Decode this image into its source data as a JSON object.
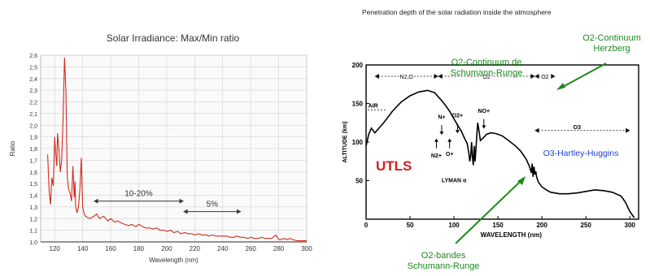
{
  "chart_data": [
    {
      "type": "line",
      "title": "Solar Irradiance: Max/Min ratio",
      "xlabel": "Wavelength (nm)",
      "ylabel": "Ratio",
      "xlim": [
        110,
        300
      ],
      "ylim": [
        1.0,
        2.6
      ],
      "x_ticks": [
        120,
        140,
        160,
        180,
        200,
        220,
        240,
        260,
        280,
        300
      ],
      "y_ticks": [
        1.0,
        1.1,
        1.2,
        1.3,
        1.4,
        1.5,
        1.6,
        1.7,
        1.8,
        1.9,
        2.0,
        2.1,
        2.2,
        2.3,
        2.4,
        2.5,
        2.6
      ],
      "y_tick_labels": [
        "1,0",
        "1,1",
        "1,2",
        "1,3",
        "1,4",
        "1,5",
        "1,6",
        "1,7",
        "1,8",
        "1,9",
        "2,0",
        "2,1",
        "2,2",
        "2,3",
        "2,4",
        "2,5",
        "2,6"
      ],
      "grid": true,
      "line_color": "#d42a1c",
      "series": [
        {
          "x": [
            115,
            116,
            117,
            118,
            119,
            120,
            121,
            121.5,
            122,
            123,
            124,
            125,
            126,
            127,
            127.5,
            128,
            129,
            130,
            131,
            132,
            133,
            134,
            134.5,
            135,
            136,
            137,
            138,
            139,
            140,
            141,
            142,
            145,
            148,
            150,
            152,
            155,
            158,
            160,
            163,
            165,
            168,
            170,
            173,
            175,
            178,
            180,
            183,
            185,
            188,
            190,
            193,
            195,
            198,
            200,
            203,
            205,
            208,
            210,
            213,
            215,
            218,
            220,
            223,
            225,
            228,
            230,
            233,
            235,
            238,
            240,
            243,
            245,
            248,
            250,
            253,
            255,
            258,
            260,
            263,
            265,
            268,
            270,
            273,
            275,
            278,
            280,
            282,
            284,
            286,
            288,
            290,
            293,
            296,
            300
          ],
          "y": [
            1.75,
            1.45,
            1.32,
            1.55,
            1.48,
            1.9,
            1.72,
            1.65,
            1.93,
            1.8,
            1.6,
            1.7,
            2.05,
            2.58,
            2.45,
            2.3,
            1.55,
            1.45,
            1.42,
            1.35,
            1.65,
            1.38,
            1.52,
            1.3,
            1.25,
            1.3,
            1.45,
            1.72,
            1.3,
            1.24,
            1.22,
            1.2,
            1.22,
            1.24,
            1.2,
            1.22,
            1.18,
            1.2,
            1.17,
            1.18,
            1.16,
            1.15,
            1.14,
            1.15,
            1.13,
            1.15,
            1.13,
            1.12,
            1.12,
            1.11,
            1.12,
            1.1,
            1.1,
            1.09,
            1.1,
            1.08,
            1.09,
            1.07,
            1.08,
            1.07,
            1.07,
            1.06,
            1.07,
            1.06,
            1.06,
            1.05,
            1.06,
            1.05,
            1.05,
            1.05,
            1.05,
            1.04,
            1.04,
            1.05,
            1.04,
            1.04,
            1.03,
            1.04,
            1.03,
            1.03,
            1.04,
            1.03,
            1.03,
            1.03,
            1.06,
            1.02,
            1.02,
            1.03,
            1.02,
            1.03,
            1.02,
            1.01,
            1.01,
            1.01
          ]
        }
      ],
      "annotations": [
        {
          "text": "10-20%",
          "x_from": 148,
          "x_to": 212,
          "y": 1.35
        },
        {
          "text": "5%",
          "x_from": 212,
          "x_to": 253,
          "y": 1.26
        }
      ]
    },
    {
      "type": "line",
      "title": "Penetration depth of the solar radiation inside the atmosphere",
      "xlabel": "WAVELENGTH (nm)",
      "ylabel": "ALTITUDE (km)",
      "xlim": [
        0,
        310
      ],
      "ylim": [
        0,
        200
      ],
      "x_ticks": [
        0,
        50,
        100,
        150,
        200,
        250,
        300
      ],
      "y_ticks": [
        50,
        100,
        150,
        200
      ],
      "grid": false,
      "line_color": "#000000",
      "series": [
        {
          "x": [
            0,
            3,
            6,
            10,
            20,
            30,
            40,
            50,
            60,
            70,
            78,
            85,
            90,
            95,
            100,
            105,
            108,
            112,
            115,
            117,
            118,
            119,
            120,
            121,
            122,
            123,
            124,
            125,
            126,
            127,
            128,
            130,
            133,
            137,
            142,
            148,
            155,
            162,
            170,
            176,
            182,
            186,
            188,
            189,
            190,
            191,
            192,
            193,
            194,
            196,
            198,
            200,
            205,
            210,
            220,
            230,
            240,
            250,
            260,
            270,
            280,
            290,
            295,
            300,
            305
          ],
          "y": [
            95,
            110,
            118,
            112,
            125,
            140,
            152,
            160,
            165,
            167,
            164,
            155,
            148,
            140,
            130,
            120,
            115,
            105,
            98,
            85,
            75,
            82,
            100,
            80,
            70,
            95,
            75,
            92,
            110,
            125,
            118,
            102,
            105,
            110,
            112,
            111,
            108,
            102,
            95,
            88,
            78,
            68,
            60,
            72,
            55,
            68,
            58,
            62,
            55,
            48,
            45,
            42,
            38,
            35,
            33,
            33,
            34,
            36,
            38,
            37,
            35,
            30,
            22,
            10,
            2
          ]
        }
      ],
      "top_ranges": [
        {
          "label": "N2,O",
          "x_from": 10,
          "x_to": 82
        },
        {
          "label": "O2",
          "x_from": 82,
          "x_to": 192
        },
        {
          "label": "O2",
          "x_from": 192,
          "x_to": 215
        }
      ],
      "inner_labels": [
        {
          "text": "AIR",
          "x": 8,
          "y": 145
        },
        {
          "text": "N+",
          "x": 86,
          "y": 130
        },
        {
          "text": "O2+",
          "x": 104,
          "y": 132
        },
        {
          "text": "NO+",
          "x": 134,
          "y": 138
        },
        {
          "text": "N2+",
          "x": 80,
          "y": 80
        },
        {
          "text": "O+",
          "x": 95,
          "y": 82
        },
        {
          "text": "LYMAN α",
          "x": 100,
          "y": 48
        },
        {
          "text": "O3",
          "x": 240,
          "y": 117
        }
      ],
      "overlay_labels": {
        "utls": "UTLS",
        "o2_sr": "O2-Continuum de\nSchumann-Runge",
        "o2_herzberg": "O2-Continuum\nHerzberg",
        "o3_hh": "O3-Hartley-Huggins",
        "o2_bandes": "O2-bandes\nSchumann-Runge"
      },
      "overlay_colors": {
        "green": "#1a8a1a",
        "red": "#d12020",
        "blue": "#1f3fd1"
      }
    }
  ]
}
